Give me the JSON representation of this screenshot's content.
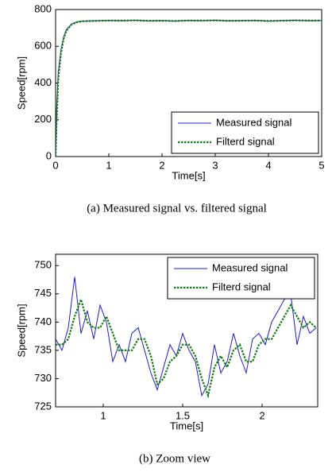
{
  "chart_data": [
    {
      "type": "line",
      "xlabel": "Time[s]",
      "ylabel": "Speed[rpm]",
      "caption": "(a)  Measured signal vs. filtered signal",
      "xlim": [
        0,
        5
      ],
      "ylim": [
        0,
        800
      ],
      "xticks": [
        0,
        1,
        2,
        3,
        4,
        5
      ],
      "yticks": [
        0,
        200,
        400,
        600,
        800
      ],
      "grid": false,
      "legend": "lower right",
      "x": [
        0,
        0.02,
        0.05,
        0.1,
        0.15,
        0.2,
        0.3,
        0.4,
        0.5,
        0.7,
        1.0,
        1.25,
        1.5,
        1.75,
        2.0,
        2.25,
        2.5,
        2.75,
        3.0,
        3.25,
        3.5,
        3.75,
        4.0,
        4.25,
        4.5,
        4.75,
        5.0
      ],
      "series": [
        {
          "name": "Measured signal",
          "color": "#1f1fbf",
          "linestyle": "solid",
          "values": [
            0,
            260,
            460,
            580,
            650,
            690,
            722,
            733,
            737,
            739,
            741,
            739,
            742,
            738,
            740,
            737,
            741,
            739,
            742,
            738,
            740,
            741,
            737,
            740,
            742,
            739,
            740
          ]
        },
        {
          "name": "Filterd signal",
          "color": "#1a7a1a",
          "linestyle": "dotted",
          "values": [
            0,
            200,
            420,
            560,
            640,
            683,
            718,
            731,
            736,
            738,
            740,
            740,
            741,
            739,
            739,
            738,
            740,
            740,
            741,
            739,
            739,
            740,
            738,
            739,
            741,
            740,
            740
          ]
        }
      ]
    },
    {
      "type": "line",
      "xlabel": "Time[s]",
      "ylabel": "Speed[rpm]",
      "caption": "(b)  Zoom view",
      "xlim": [
        0.7,
        2.35
      ],
      "ylim": [
        725,
        752
      ],
      "xticks": [
        1,
        1.5,
        2
      ],
      "yticks": [
        725,
        730,
        735,
        740,
        745,
        750
      ],
      "grid": false,
      "legend": "upper right",
      "x": [
        0.7,
        0.74,
        0.78,
        0.82,
        0.86,
        0.9,
        0.94,
        0.98,
        1.02,
        1.06,
        1.1,
        1.14,
        1.18,
        1.22,
        1.26,
        1.3,
        1.34,
        1.38,
        1.42,
        1.46,
        1.5,
        1.54,
        1.58,
        1.62,
        1.66,
        1.7,
        1.74,
        1.78,
        1.82,
        1.86,
        1.9,
        1.94,
        1.98,
        2.02,
        2.06,
        2.1,
        2.14,
        2.18,
        2.22,
        2.26,
        2.3,
        2.34
      ],
      "series": [
        {
          "name": "Measured signal",
          "color": "#1f1fbf",
          "linestyle": "solid",
          "values": [
            737,
            735,
            739,
            748,
            738,
            742,
            737,
            743,
            740,
            733,
            736,
            733,
            738,
            739,
            735,
            731,
            728,
            732,
            736,
            734,
            738,
            735,
            733,
            727,
            729,
            736,
            731,
            733,
            738,
            734,
            731,
            737,
            738,
            736,
            740,
            742,
            744,
            745,
            736,
            741,
            738,
            739
          ]
        },
        {
          "name": "Filterd signal",
          "color": "#1a7a1a",
          "linestyle": "dotted",
          "values": [
            736,
            736,
            737,
            741,
            744,
            740,
            739,
            739,
            741,
            738,
            735,
            735,
            735,
            737,
            737,
            734,
            729,
            730,
            733,
            734,
            736,
            736,
            734,
            730,
            727,
            732,
            734,
            732,
            735,
            736,
            733,
            733,
            736,
            737,
            737,
            739,
            741,
            743,
            741,
            739,
            740,
            739
          ]
        }
      ]
    }
  ]
}
